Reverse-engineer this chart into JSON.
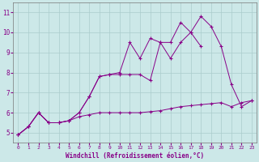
{
  "xlabel": "Windchill (Refroidissement éolien,°C)",
  "background_color": "#cce8e8",
  "grid_color": "#aacccc",
  "line_color": "#880088",
  "x": [
    0,
    1,
    2,
    3,
    4,
    5,
    6,
    7,
    8,
    9,
    10,
    11,
    12,
    13,
    14,
    15,
    16,
    17,
    18,
    19,
    20,
    21,
    22,
    23
  ],
  "series1": [
    4.9,
    5.3,
    6.0,
    5.5,
    5.5,
    5.6,
    5.8,
    5.9,
    6.0,
    6.0,
    6.0,
    6.0,
    6.0,
    6.05,
    6.1,
    6.2,
    6.3,
    6.35,
    6.4,
    6.45,
    6.5,
    6.3,
    6.5,
    6.6
  ],
  "series2": [
    4.9,
    5.3,
    6.0,
    5.5,
    5.5,
    5.6,
    6.0,
    6.8,
    7.8,
    7.9,
    7.9,
    7.9,
    7.9,
    7.6,
    9.5,
    8.7,
    9.5,
    10.0,
    10.8,
    10.3,
    9.3,
    7.4,
    6.3,
    6.6
  ],
  "series3": [
    4.9,
    5.3,
    6.0,
    5.5,
    5.5,
    5.6,
    6.0,
    6.8,
    7.8,
    7.9,
    8.0,
    9.5,
    8.7,
    9.7,
    9.5,
    9.5,
    10.5,
    10.0,
    9.3,
    null,
    null,
    null,
    null,
    null
  ],
  "ylim": [
    4.5,
    11.5
  ],
  "xlim": [
    -0.5,
    23.5
  ],
  "yticks": [
    5,
    6,
    7,
    8,
    9,
    10,
    11
  ]
}
